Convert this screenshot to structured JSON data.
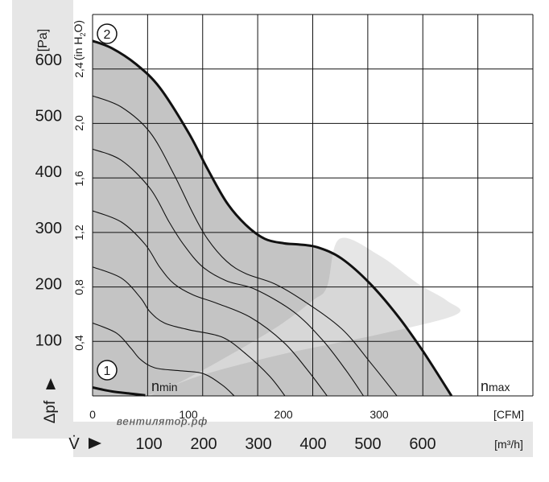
{
  "chart_data": {
    "type": "line",
    "title": "",
    "y_axis_left": {
      "unit": "[Pa]",
      "ticks": [
        100,
        200,
        300,
        400,
        500,
        600
      ],
      "range": [
        0,
        680
      ]
    },
    "y_axis_inner": {
      "unit_prefix": "(in H",
      "unit_sub": "2",
      "unit_suffix": "O)",
      "ticks": [
        "0,4",
        "0,8",
        "1,2",
        "1,6",
        "2,0",
        "2,4"
      ]
    },
    "x_axis_cfm": {
      "unit": "[CFM]",
      "ticks": [
        "0",
        "100",
        "200",
        "300"
      ],
      "range": [
        0,
        460
      ]
    },
    "x_axis_m3h": {
      "unit": "[m³/h]",
      "ticks": [
        "100",
        "200",
        "300",
        "400",
        "500",
        "600"
      ]
    },
    "y_symbol": "Δpf",
    "x_symbol": "V̇",
    "grid": true,
    "colors": {
      "operating_region": "#c4c4c4",
      "recommended_band": "#dedede",
      "axis_panel": "#e6e6e6",
      "curve": "#111111"
    },
    "labels": {
      "curve_1_marker": "1",
      "curve_2_marker": "2",
      "n_min_base": "n",
      "n_min_sub": "min",
      "n_max_base": "n",
      "n_max_sub": "max",
      "watermark": "вентилятор.рф"
    },
    "series": [
      {
        "name": "2 (nmax)",
        "role": "max",
        "points": [
          [
            0,
            633
          ],
          [
            20,
            620
          ],
          [
            45,
            592
          ],
          [
            70,
            550
          ],
          [
            100,
            470
          ],
          [
            120,
            405
          ],
          [
            140,
            345
          ],
          [
            160,
            305
          ],
          [
            180,
            280
          ],
          [
            200,
            272
          ],
          [
            215,
            270
          ],
          [
            235,
            265
          ],
          [
            260,
            245
          ],
          [
            290,
            200
          ],
          [
            320,
            140
          ],
          [
            345,
            80
          ],
          [
            375,
            0
          ]
        ]
      },
      {
        "name": "1 (nmin)",
        "role": "min",
        "points": [
          [
            0,
            15
          ],
          [
            20,
            8
          ],
          [
            40,
            4
          ],
          [
            55,
            1
          ]
        ]
      },
      {
        "name": "",
        "role": "speed",
        "points": [
          [
            0,
            535
          ],
          [
            30,
            515
          ],
          [
            60,
            470
          ],
          [
            85,
            395
          ],
          [
            105,
            325
          ],
          [
            120,
            280
          ],
          [
            140,
            240
          ],
          [
            160,
            218
          ],
          [
            190,
            200
          ],
          [
            220,
            170
          ],
          [
            260,
            120
          ],
          [
            290,
            60
          ],
          [
            318,
            0
          ]
        ]
      },
      {
        "name": "",
        "role": "speed",
        "points": [
          [
            0,
            440
          ],
          [
            30,
            420
          ],
          [
            60,
            370
          ],
          [
            80,
            310
          ],
          [
            95,
            270
          ],
          [
            115,
            230
          ],
          [
            140,
            205
          ],
          [
            170,
            190
          ],
          [
            210,
            150
          ],
          [
            240,
            100
          ],
          [
            265,
            45
          ],
          [
            283,
            0
          ]
        ]
      },
      {
        "name": "",
        "role": "speed",
        "points": [
          [
            0,
            330
          ],
          [
            30,
            310
          ],
          [
            55,
            270
          ],
          [
            70,
            230
          ],
          [
            85,
            200
          ],
          [
            105,
            180
          ],
          [
            130,
            165
          ],
          [
            165,
            140
          ],
          [
            200,
            95
          ],
          [
            225,
            45
          ],
          [
            245,
            0
          ]
        ]
      },
      {
        "name": "",
        "role": "speed",
        "points": [
          [
            0,
            230
          ],
          [
            30,
            210
          ],
          [
            50,
            175
          ],
          [
            60,
            150
          ],
          [
            75,
            130
          ],
          [
            100,
            118
          ],
          [
            135,
            105
          ],
          [
            160,
            75
          ],
          [
            185,
            35
          ],
          [
            201,
            0
          ]
        ]
      },
      {
        "name": "",
        "role": "speed",
        "points": [
          [
            0,
            130
          ],
          [
            25,
            112
          ],
          [
            40,
            85
          ],
          [
            50,
            65
          ],
          [
            65,
            50
          ],
          [
            90,
            45
          ],
          [
            115,
            40
          ],
          [
            135,
            20
          ],
          [
            148,
            0
          ]
        ]
      }
    ],
    "regions": {
      "operating": [
        [
          0,
          633
        ],
        [
          20,
          620
        ],
        [
          45,
          592
        ],
        [
          70,
          550
        ],
        [
          100,
          470
        ],
        [
          120,
          405
        ],
        [
          140,
          345
        ],
        [
          160,
          305
        ],
        [
          180,
          280
        ],
        [
          200,
          272
        ],
        [
          215,
          270
        ],
        [
          235,
          265
        ],
        [
          260,
          245
        ],
        [
          290,
          200
        ],
        [
          320,
          140
        ],
        [
          345,
          80
        ],
        [
          375,
          0
        ],
        [
          0,
          0
        ]
      ],
      "recommended_band": [
        [
          55,
          0
        ],
        [
          80,
          15
        ],
        [
          130,
          60
        ],
        [
          190,
          120
        ],
        [
          230,
          170
        ],
        [
          245,
          195
        ],
        [
          258,
          280
        ],
        [
          300,
          250
        ],
        [
          340,
          200
        ],
        [
          370,
          170
        ],
        [
          380,
          145
        ],
        [
          300,
          110
        ],
        [
          200,
          75
        ],
        [
          120,
          40
        ],
        [
          75,
          12
        ],
        [
          60,
          0
        ]
      ]
    }
  }
}
